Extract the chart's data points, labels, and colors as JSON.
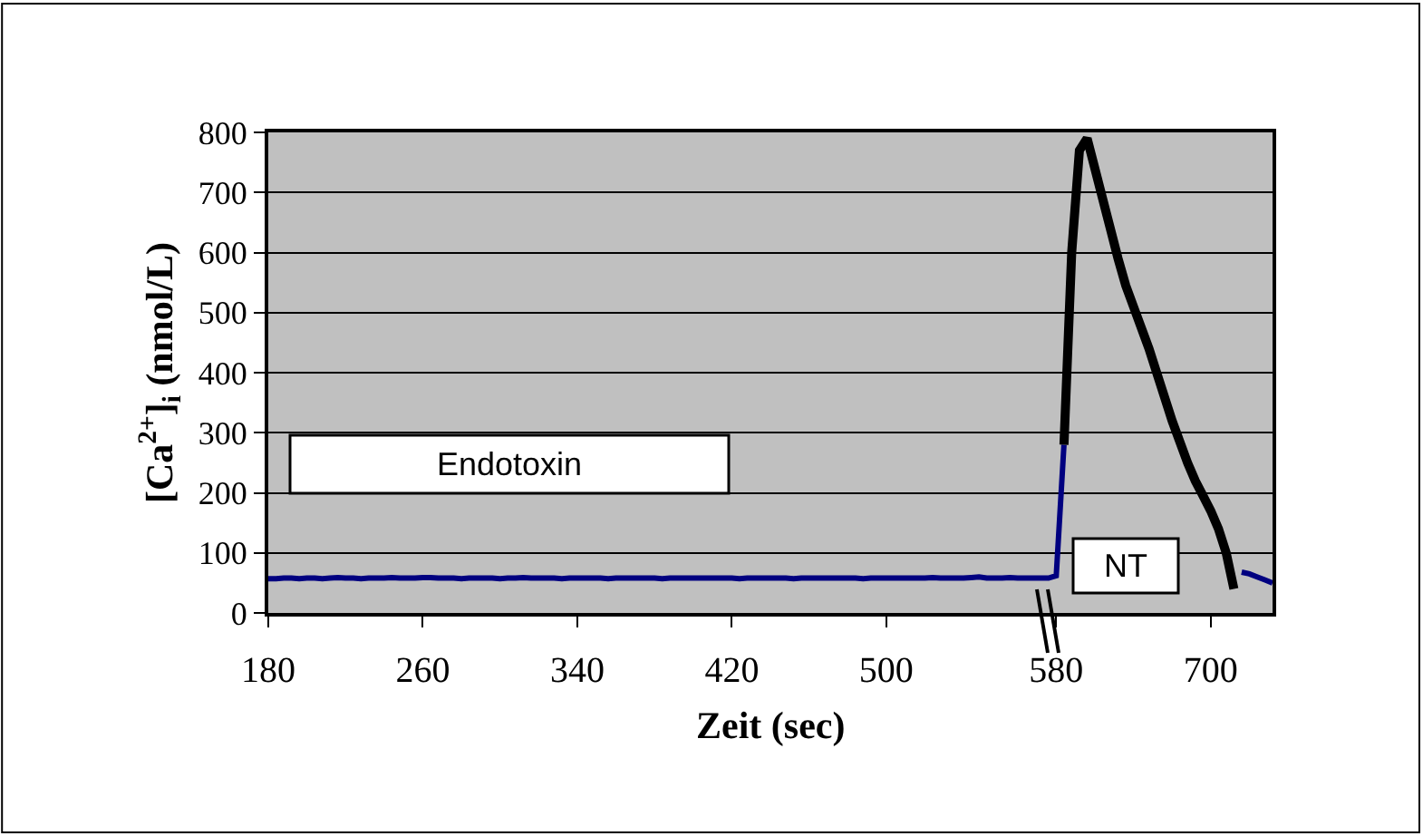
{
  "chart_data": {
    "type": "line",
    "xlabel": "Zeit (sec)",
    "ylabel": "[Ca$^{2+}$]$_{i}$ (nmol/L)",
    "categories": [
      "180",
      null,
      null,
      null,
      null,
      null,
      null,
      null,
      null,
      null,
      null,
      null,
      null,
      null,
      null,
      null,
      null,
      null,
      null,
      null,
      "260",
      null,
      null,
      null,
      null,
      null,
      null,
      null,
      null,
      null,
      null,
      null,
      null,
      null,
      null,
      null,
      null,
      null,
      null,
      null,
      "340",
      null,
      null,
      null,
      null,
      null,
      null,
      null,
      null,
      null,
      null,
      null,
      null,
      null,
      null,
      null,
      null,
      null,
      null,
      null,
      "420",
      null,
      null,
      null,
      null,
      null,
      null,
      null,
      null,
      null,
      null,
      null,
      null,
      null,
      null,
      null,
      null,
      null,
      null,
      null,
      "500",
      null,
      null,
      null,
      null,
      null,
      null,
      null,
      null,
      null,
      null,
      null,
      null,
      null,
      null,
      null,
      null,
      null,
      null,
      null,
      null,
      null,
      "580",
      null,
      null,
      null,
      null,
      null,
      null,
      null,
      null,
      null,
      null,
      null,
      null,
      null,
      null,
      null,
      null,
      null,
      null,
      null,
      "700",
      null,
      null,
      null,
      null,
      null,
      null,
      null,
      null
    ],
    "ylim": [
      0,
      800
    ],
    "yticks": [
      0,
      100,
      200,
      300,
      400,
      500,
      600,
      700,
      800
    ],
    "grid": "y",
    "marker": "none",
    "line_style": "solid",
    "series": [
      {
        "color": "#000080",
        "values": [
          57,
          57,
          58,
          58,
          57,
          58,
          58,
          57,
          58,
          59,
          58,
          58,
          57,
          58,
          58,
          58,
          59,
          58,
          58,
          58,
          59,
          59,
          58,
          58,
          58,
          57,
          58,
          58,
          58,
          58,
          57,
          58,
          58,
          59,
          58,
          58,
          58,
          58,
          57,
          58,
          58,
          58,
          58,
          58,
          57,
          58,
          58,
          58,
          58,
          58,
          58,
          57,
          58,
          58,
          58,
          58,
          58,
          58,
          58,
          58,
          58,
          57,
          58,
          58,
          58,
          58,
          58,
          58,
          57,
          58,
          58,
          58,
          58,
          58,
          58,
          58,
          58,
          57,
          58,
          58,
          58,
          58,
          58,
          58,
          58,
          58,
          59,
          58,
          58,
          58,
          58,
          59,
          60,
          58,
          58,
          58,
          59,
          58,
          58,
          58,
          58,
          58,
          62,
          280,
          null,
          null,
          null,
          null,
          null,
          null,
          null,
          null,
          null,
          null,
          null,
          null,
          null,
          null,
          null,
          null,
          null,
          null,
          null,
          null,
          null,
          null,
          null,
          null,
          null,
          null,
          null
        ]
      },
      {
        "color": "#000000",
        "values": [
          null,
          null,
          null,
          null,
          null,
          null,
          null,
          null,
          null,
          null,
          null,
          null,
          null,
          null,
          null,
          null,
          null,
          null,
          null,
          null,
          null,
          null,
          null,
          null,
          null,
          null,
          null,
          null,
          null,
          null,
          null,
          null,
          null,
          null,
          null,
          null,
          null,
          null,
          null,
          null,
          null,
          null,
          null,
          null,
          null,
          null,
          null,
          null,
          null,
          null,
          null,
          null,
          null,
          null,
          null,
          null,
          null,
          null,
          null,
          null,
          null,
          null,
          null,
          null,
          null,
          null,
          null,
          null,
          null,
          null,
          null,
          null,
          null,
          null,
          null,
          null,
          null,
          null,
          null,
          null,
          null,
          null,
          null,
          null,
          null,
          null,
          null,
          null,
          null,
          null,
          null,
          null,
          null,
          null,
          null,
          null,
          null,
          null,
          null,
          null,
          null,
          null,
          null,
          280,
          600,
          770,
          790,
          740,
          690,
          640,
          590,
          545,
          510,
          475,
          440,
          400,
          360,
          320,
          285,
          250,
          220,
          195,
          170,
          140,
          100,
          40,
          null,
          null,
          null,
          null,
          null
        ]
      },
      {
        "color": "#000080",
        "values": [
          null,
          null,
          null,
          null,
          null,
          null,
          null,
          null,
          null,
          null,
          null,
          null,
          null,
          null,
          null,
          null,
          null,
          null,
          null,
          null,
          null,
          null,
          null,
          null,
          null,
          null,
          null,
          null,
          null,
          null,
          null,
          null,
          null,
          null,
          null,
          null,
          null,
          null,
          null,
          null,
          null,
          null,
          null,
          null,
          null,
          null,
          null,
          null,
          null,
          null,
          null,
          null,
          null,
          null,
          null,
          null,
          null,
          null,
          null,
          null,
          null,
          null,
          null,
          null,
          null,
          null,
          null,
          null,
          null,
          null,
          null,
          null,
          null,
          null,
          null,
          null,
          null,
          null,
          null,
          null,
          null,
          null,
          null,
          null,
          null,
          null,
          null,
          null,
          null,
          null,
          null,
          null,
          null,
          null,
          null,
          null,
          null,
          null,
          null,
          null,
          null,
          null,
          null,
          null,
          null,
          null,
          null,
          null,
          null,
          null,
          null,
          null,
          null,
          null,
          null,
          null,
          null,
          null,
          null,
          null,
          null,
          null,
          null,
          null,
          null,
          null,
          68,
          65,
          60,
          55,
          50
        ]
      }
    ],
    "annotations": [
      "Endotoxin",
      "NT"
    ]
  }
}
